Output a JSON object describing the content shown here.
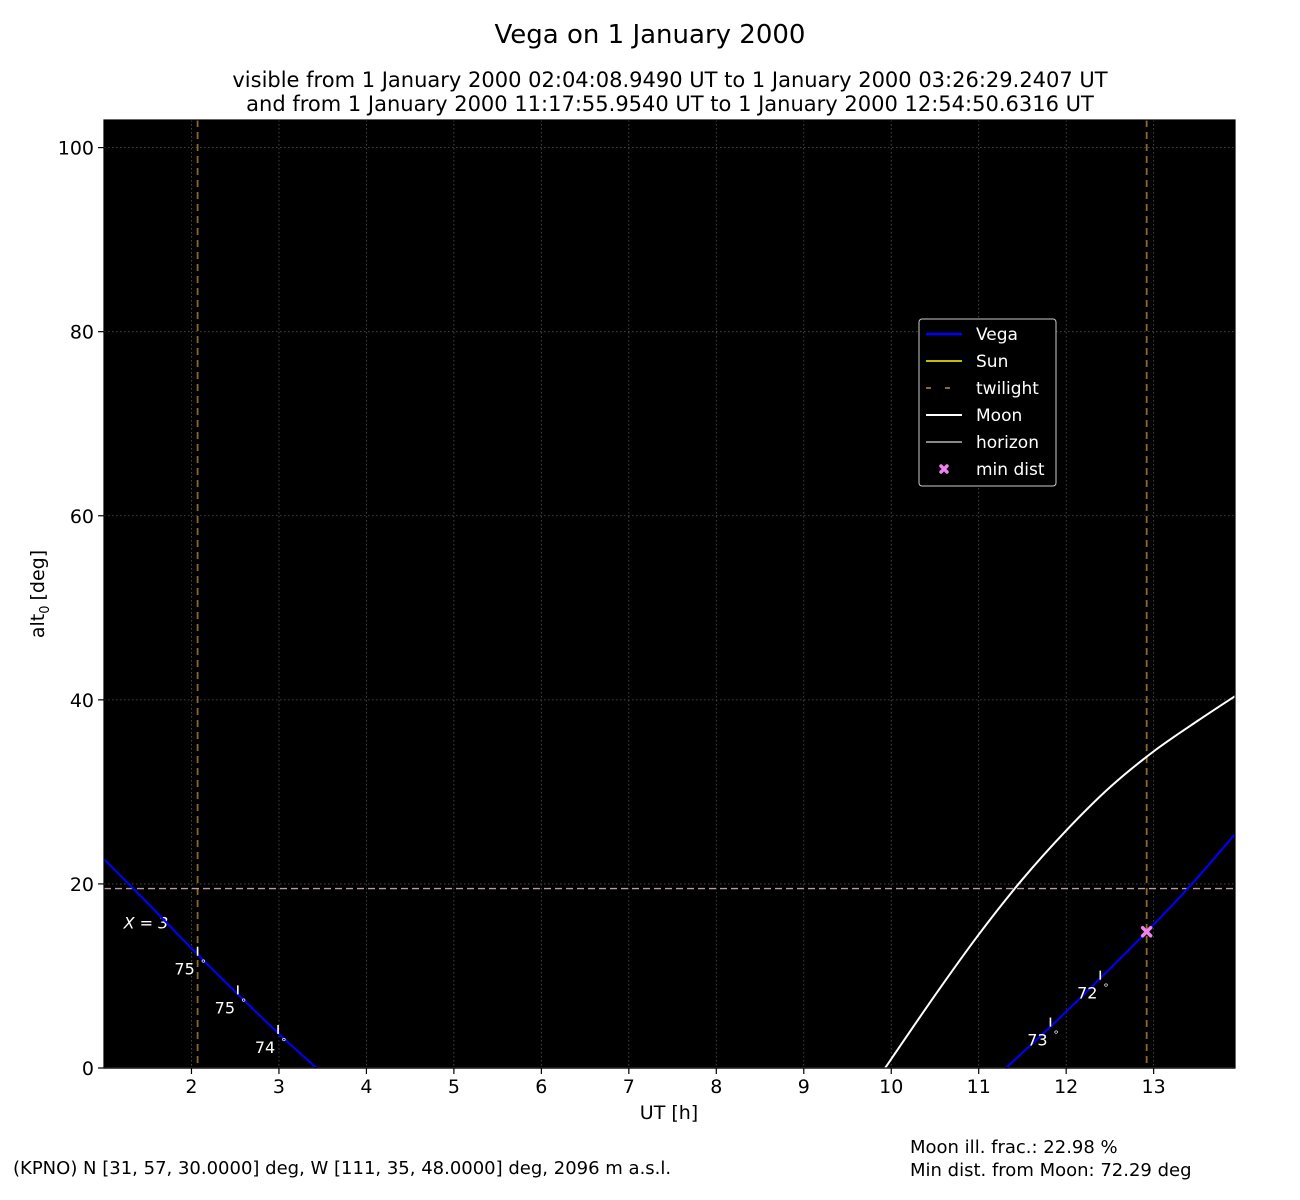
{
  "title": "Vega on 1 January 2000",
  "subtitle_line1": "visible from 1 January 2000 02:04:08.9490 UT to 1 January 2000 03:26:29.2407 UT",
  "subtitle_line2": "and from 1 January 2000 11:17:55.9540 UT to 1 January 2000 12:54:50.6316 UT",
  "footer": {
    "location": "(KPNO) N [31, 57, 30.0000] deg, W [111, 35, 48.0000] deg, 2096 m a.s.l.",
    "moon_illumination": "Moon ill. frac.: 22.98 %",
    "moon_min_distance": "Min dist. from Moon: 72.29 deg"
  },
  "colors": {
    "plot_background": "#000000",
    "vega": "#0000ff",
    "sun": "#bfbf00",
    "twilight": "#8b6b2a",
    "moon": "#ffffff",
    "horizon": "#888888",
    "airmass_line": "#b89aa0",
    "min_dist": "#ee82ee",
    "grid": "#555555"
  },
  "chart_data": {
    "type": "line",
    "xlabel": "UT [h]",
    "ylabel_base": "alt",
    "ylabel_sub": "0",
    "ylabel_unit": "[deg]",
    "xlim": [
      1.0,
      13.93
    ],
    "ylim": [
      0,
      103
    ],
    "xticks": [
      2,
      3,
      4,
      5,
      6,
      7,
      8,
      9,
      10,
      11,
      12,
      13
    ],
    "yticks": [
      0,
      20,
      40,
      60,
      80,
      100
    ],
    "grid": true,
    "legend_position": "upper-right",
    "legend": [
      "Vega",
      "Sun",
      "twilight",
      "Moon",
      "horizon",
      "min dist"
    ],
    "series": [
      {
        "name": "Vega",
        "segments": [
          {
            "x": [
              1.0,
              1.5,
              2.0,
              2.5,
              3.0,
              3.43
            ],
            "y": [
              22.7,
              17.9,
              13.0,
              8.3,
              3.7,
              0.0
            ]
          },
          {
            "x": [
              11.31,
              11.8,
              12.3,
              12.9,
              13.4,
              13.93
            ],
            "y": [
              0.0,
              4.3,
              8.9,
              14.6,
              19.6,
              25.4
            ]
          }
        ]
      },
      {
        "name": "Moon",
        "segments": [
          {
            "x": [
              9.93,
              10.5,
              11.0,
              11.5,
              12.0,
              12.5,
              13.0,
              13.5,
              13.93
            ],
            "y": [
              0.0,
              7.9,
              14.5,
              20.5,
              25.8,
              30.5,
              34.4,
              37.7,
              40.4
            ]
          }
        ]
      }
    ],
    "twilight_lines_x": [
      2.07,
      12.92
    ],
    "airmass_line": {
      "y": 19.5,
      "label": "X = 3",
      "label_x": 1.48,
      "label_y": 15.8
    },
    "min_dist_point": {
      "x": 12.92,
      "y": 14.8
    },
    "angle_annotations": [
      {
        "x": 2.07,
        "y": 12.2,
        "label": "75",
        "unit": "°"
      },
      {
        "x": 2.53,
        "y": 8.0,
        "label": "75",
        "unit": "°"
      },
      {
        "x": 2.99,
        "y": 3.7,
        "label": "74",
        "unit": "°"
      },
      {
        "x": 11.82,
        "y": 4.5,
        "label": "73",
        "unit": "°"
      },
      {
        "x": 12.39,
        "y": 9.6,
        "label": "72",
        "unit": "°"
      }
    ]
  }
}
